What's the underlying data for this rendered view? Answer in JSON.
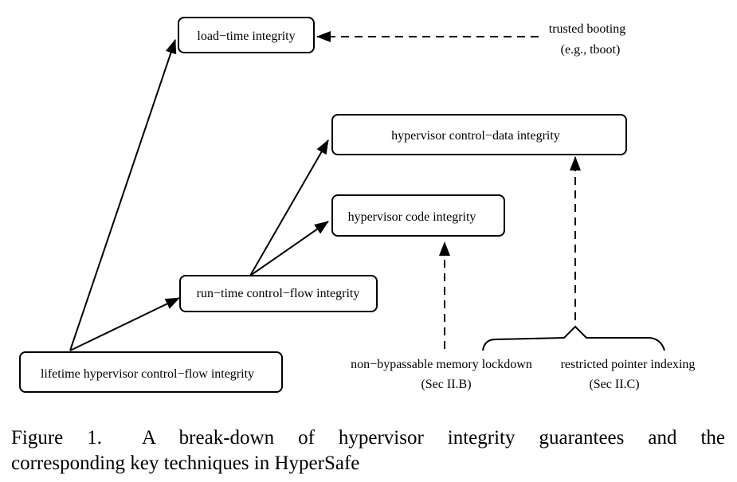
{
  "nodes": {
    "load_time": "load−time integrity",
    "control_data": "hypervisor control−data integrity",
    "code": "hypervisor code integrity",
    "runtime_cfi": "run−time control−flow integrity",
    "lifetime_cfi": "lifetime hypervisor control−flow integrity"
  },
  "techniques": {
    "trusted_booting": "trusted booting",
    "tboot": "(e.g., tboot)",
    "memory_lockdown": "non−bypassable memory lockdown",
    "memory_lockdown_ref": "(Sec II.B)",
    "pointer_indexing": "restricted pointer indexing",
    "pointer_indexing_ref": "(Sec II.C)"
  },
  "caption": {
    "line1": "Figure 1.  A break-down of hypervisor integrity guarantees and the",
    "line2": "corresponding key techniques in HyperSafe"
  }
}
